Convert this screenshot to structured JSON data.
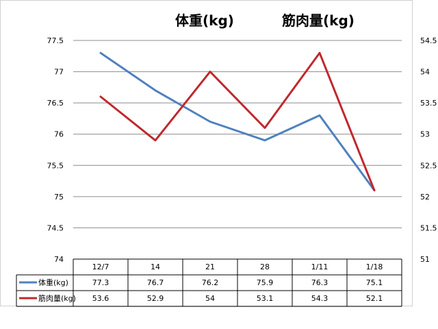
{
  "chart_data": {
    "type": "line",
    "titles": [
      "体重(kg)",
      "筋肉量(kg)"
    ],
    "categories": [
      "12/7",
      "14",
      "21",
      "28",
      "1/11",
      "1/18"
    ],
    "y_left": {
      "min": 74,
      "max": 77.5,
      "step": 0.5,
      "ticks": [
        "74",
        "74.5",
        "75",
        "75.5",
        "76",
        "76.5",
        "77",
        "77.5"
      ]
    },
    "y_right": {
      "min": 51,
      "max": 54.5,
      "step": 0.5,
      "ticks": [
        "51",
        "51.5",
        "52",
        "52.5",
        "53",
        "53.5",
        "54",
        "54.5"
      ]
    },
    "grid": true,
    "legend": "data-table",
    "series": [
      {
        "name": "体重(kg)",
        "axis": "left",
        "color": "#4f81bd",
        "values": [
          77.3,
          76.7,
          76.2,
          75.9,
          76.3,
          75.1
        ],
        "labels": [
          "77.3",
          "76.7",
          "76.2",
          "75.9",
          "76.3",
          "75.1"
        ]
      },
      {
        "name": "筋肉量(kg)",
        "axis": "right",
        "color": "#c0282d",
        "values": [
          53.6,
          52.9,
          54,
          53.1,
          54.3,
          52.1
        ],
        "labels": [
          "53.6",
          "52.9",
          "54",
          "53.1",
          "54.3",
          "52.1"
        ]
      }
    ]
  }
}
